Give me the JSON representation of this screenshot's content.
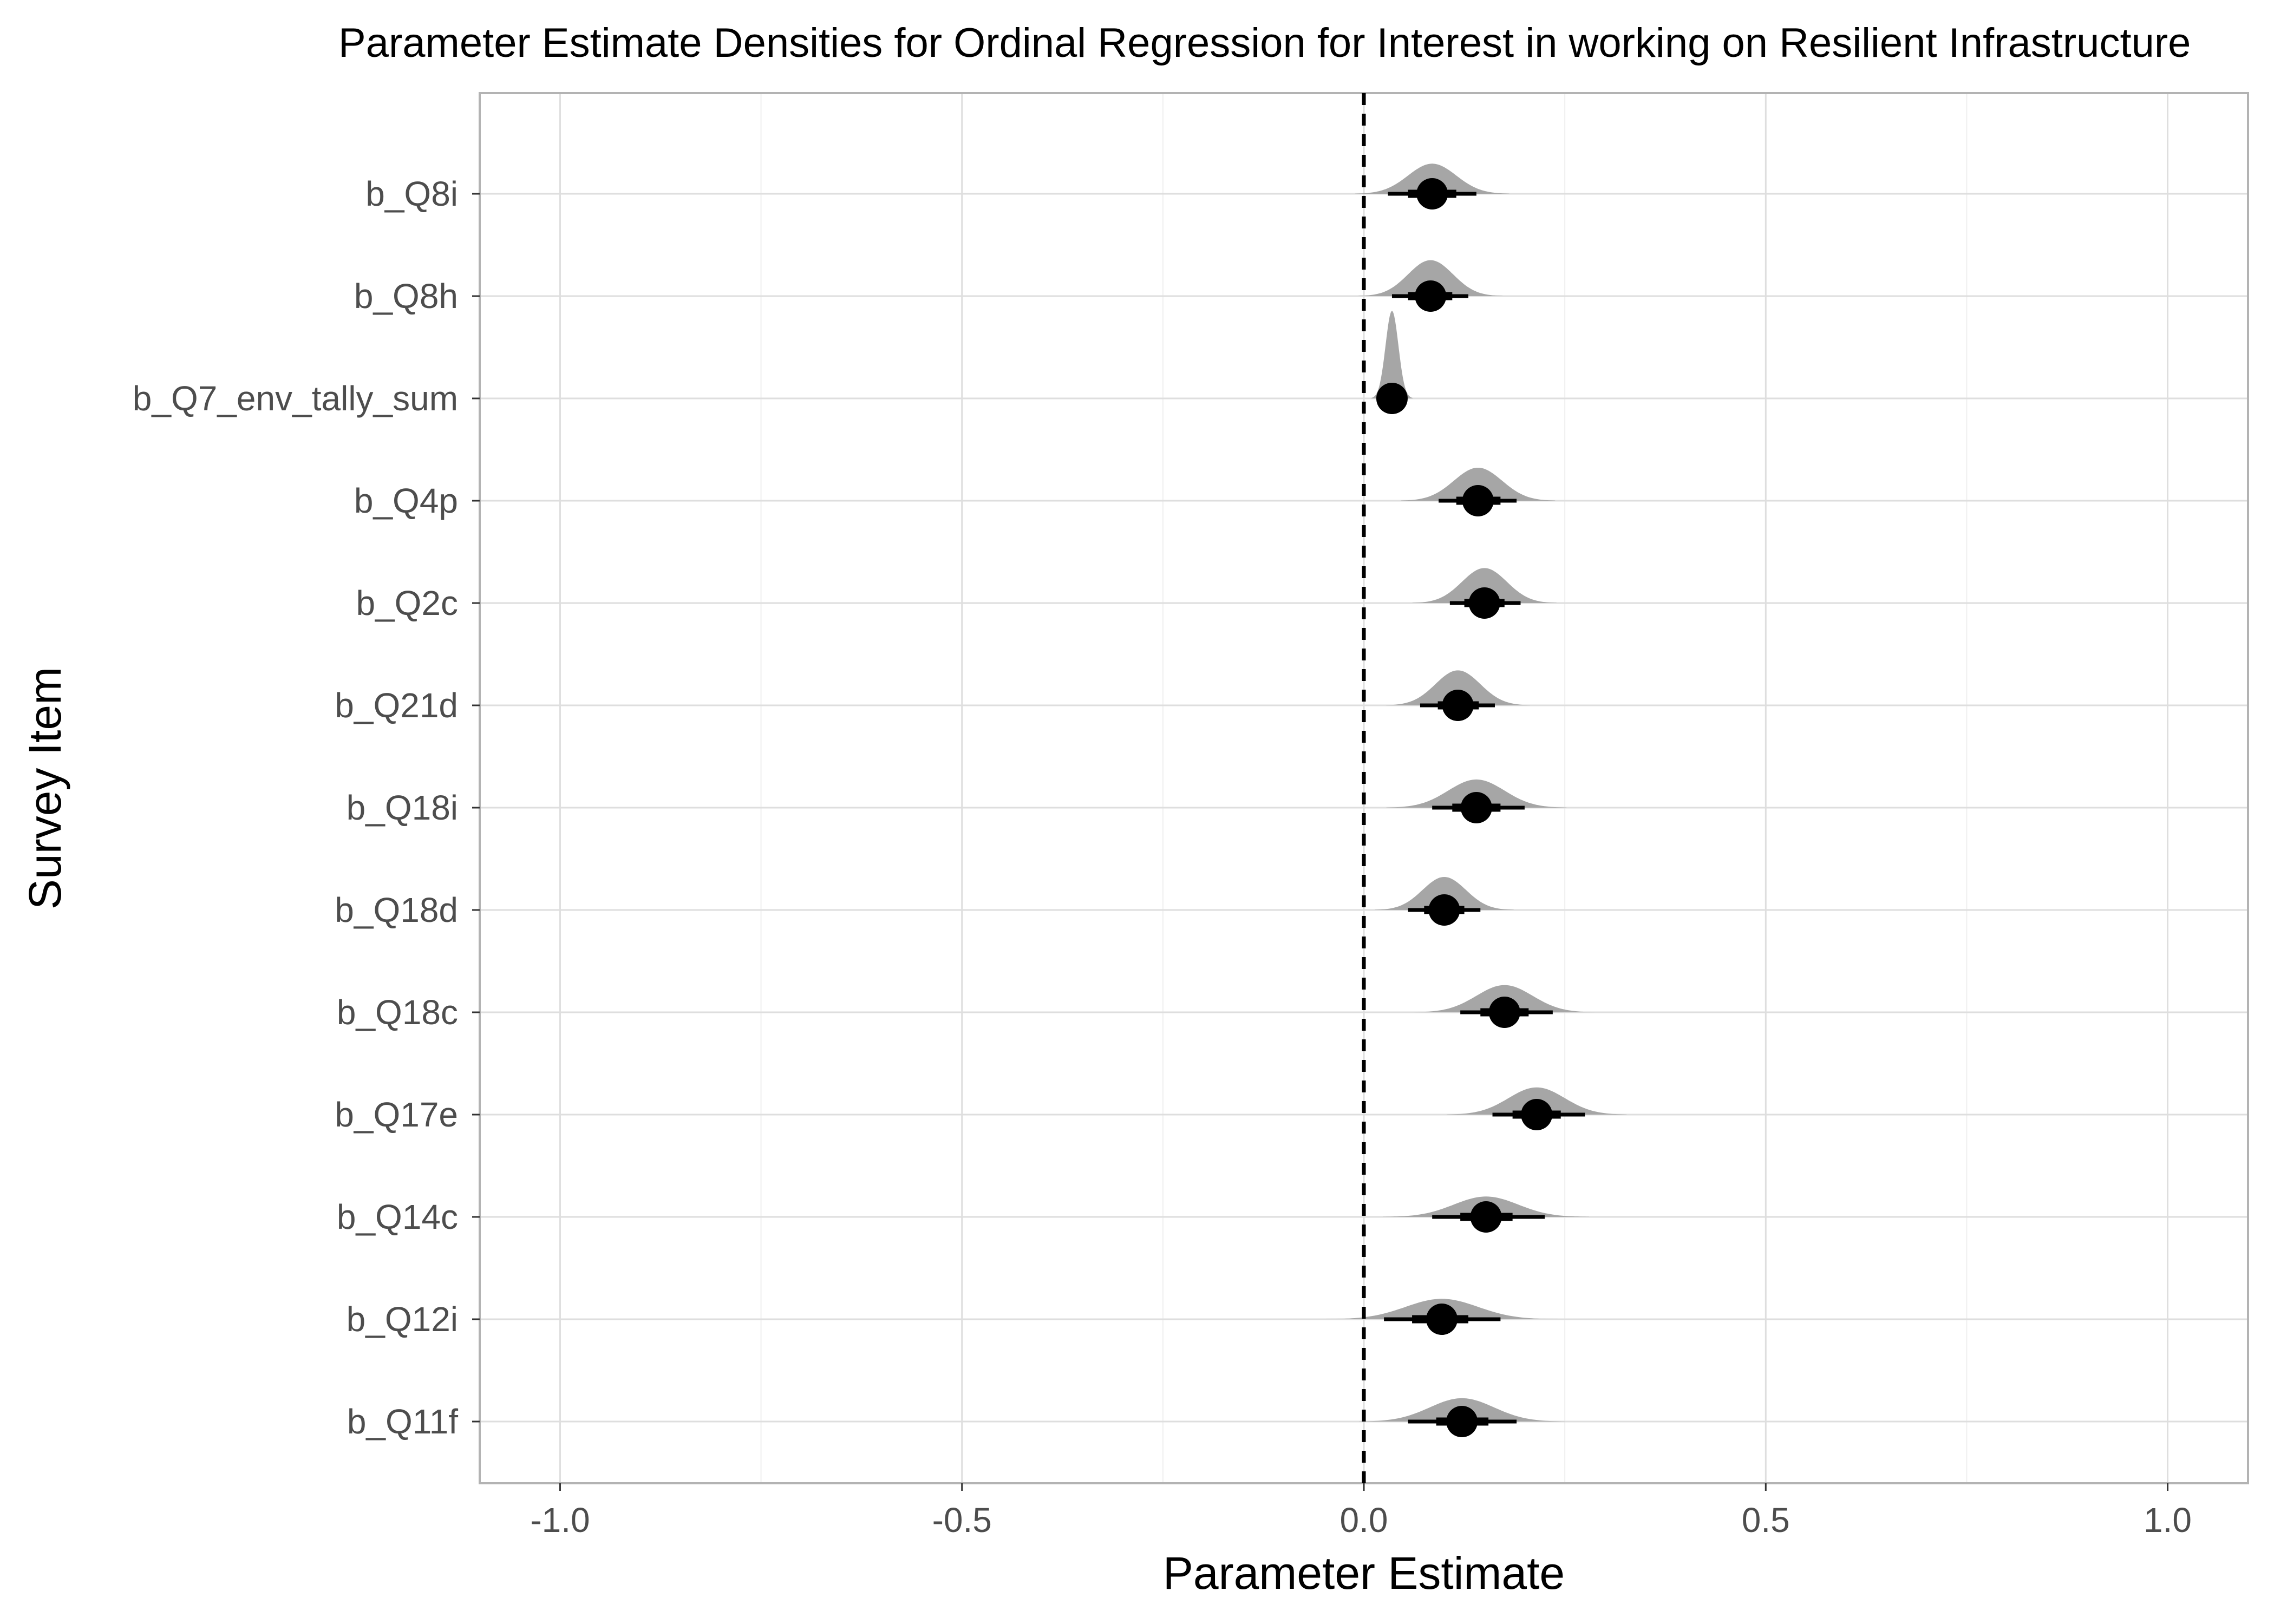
{
  "chart_data": {
    "type": "density-interval",
    "title": "Parameter Estimate Densities for Ordinal Regression for Interest in working on Resilient Infrastructure",
    "xlabel": "Parameter Estimate",
    "ylabel": "Survey Item",
    "xlim": [
      -1.1,
      1.1
    ],
    "x_ticks": [
      -1.0,
      -0.5,
      0.0,
      0.5,
      1.0
    ],
    "x_tick_labels": [
      "-1.0",
      "-0.5",
      "0.0",
      "0.5",
      "1.0"
    ],
    "reference_line_x": 0.0,
    "grid": true,
    "colors": {
      "density_fill": "#a6a6a6",
      "point": "#000000",
      "interval": "#000000",
      "reference_line": "#000000"
    },
    "items": [
      {
        "label": "b_Q8i",
        "median": 0.085,
        "inner": [
          0.055,
          0.115
        ],
        "outer": [
          0.03,
          0.14
        ],
        "density_sd": 0.03,
        "density_peak": 0.31
      },
      {
        "label": "b_Q8h",
        "median": 0.083,
        "inner": [
          0.055,
          0.11
        ],
        "outer": [
          0.035,
          0.13
        ],
        "density_sd": 0.028,
        "density_peak": 0.37
      },
      {
        "label": "b_Q7_env_tally_sum",
        "median": 0.035,
        "inner": [
          0.03,
          0.04
        ],
        "outer": [
          0.025,
          0.045
        ],
        "density_sd": 0.008,
        "density_peak": 0.9
      },
      {
        "label": "b_Q4p",
        "median": 0.142,
        "inner": [
          0.115,
          0.17
        ],
        "outer": [
          0.093,
          0.19
        ],
        "density_sd": 0.03,
        "density_peak": 0.34
      },
      {
        "label": "b_Q2c",
        "median": 0.15,
        "inner": [
          0.125,
          0.175
        ],
        "outer": [
          0.107,
          0.195
        ],
        "density_sd": 0.028,
        "density_peak": 0.36
      },
      {
        "label": "b_Q21d",
        "median": 0.117,
        "inner": [
          0.092,
          0.143
        ],
        "outer": [
          0.07,
          0.163
        ],
        "density_sd": 0.028,
        "density_peak": 0.36
      },
      {
        "label": "b_Q18i",
        "median": 0.14,
        "inner": [
          0.11,
          0.17
        ],
        "outer": [
          0.085,
          0.2
        ],
        "density_sd": 0.035,
        "density_peak": 0.29
      },
      {
        "label": "b_Q18d",
        "median": 0.1,
        "inner": [
          0.075,
          0.125
        ],
        "outer": [
          0.055,
          0.145
        ],
        "density_sd": 0.027,
        "density_peak": 0.34
      },
      {
        "label": "b_Q18c",
        "median": 0.175,
        "inner": [
          0.145,
          0.205
        ],
        "outer": [
          0.12,
          0.235
        ],
        "density_sd": 0.035,
        "density_peak": 0.28
      },
      {
        "label": "b_Q17e",
        "median": 0.215,
        "inner": [
          0.185,
          0.245
        ],
        "outer": [
          0.16,
          0.275
        ],
        "density_sd": 0.035,
        "density_peak": 0.28
      },
      {
        "label": "b_Q14c",
        "median": 0.152,
        "inner": [
          0.12,
          0.185
        ],
        "outer": [
          0.085,
          0.225
        ],
        "density_sd": 0.04,
        "density_peak": 0.21
      },
      {
        "label": "b_Q12i",
        "median": 0.097,
        "inner": [
          0.06,
          0.13
        ],
        "outer": [
          0.025,
          0.17
        ],
        "density_sd": 0.045,
        "density_peak": 0.21
      },
      {
        "label": "b_Q11f",
        "median": 0.122,
        "inner": [
          0.09,
          0.155
        ],
        "outer": [
          0.055,
          0.19
        ],
        "density_sd": 0.04,
        "density_peak": 0.24
      }
    ]
  }
}
